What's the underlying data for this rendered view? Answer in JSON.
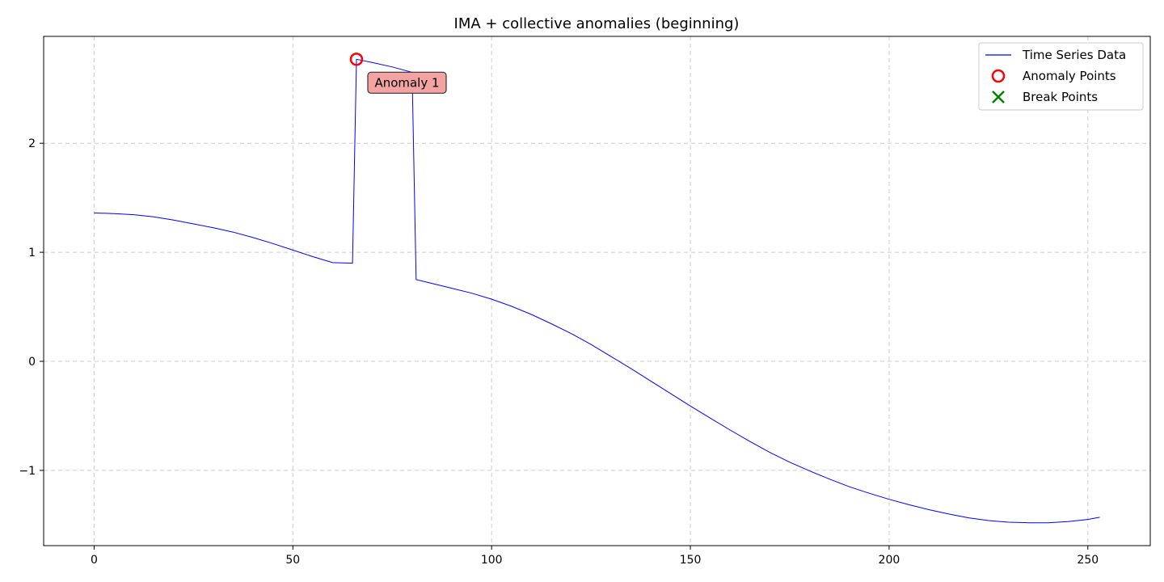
{
  "chart_data": {
    "type": "line",
    "title": "IMA + collective anomalies (beginning)",
    "xlabel": "",
    "ylabel": "",
    "xlim": [
      -12.7,
      265.7
    ],
    "ylim": [
      -1.69,
      2.98
    ],
    "xticks": [
      0,
      50,
      100,
      150,
      200,
      250
    ],
    "yticks": [
      -1,
      0,
      1,
      2
    ],
    "xtick_labels": [
      "0",
      "50",
      "100",
      "150",
      "200",
      "250"
    ],
    "ytick_labels": [
      "−1",
      "0",
      "1",
      "2"
    ],
    "grid": true,
    "legend_position": "top-right",
    "series": [
      {
        "name": "Time Series Data",
        "style": "line",
        "color": "#0000ff",
        "x": [
          0,
          5,
          10,
          15,
          20,
          25,
          30,
          35,
          40,
          45,
          50,
          55,
          60,
          65,
          66,
          70,
          75,
          80,
          81,
          85,
          90,
          95,
          100,
          105,
          110,
          115,
          120,
          125,
          130,
          135,
          140,
          145,
          150,
          155,
          160,
          165,
          170,
          175,
          180,
          185,
          190,
          195,
          200,
          205,
          210,
          215,
          220,
          225,
          230,
          235,
          240,
          245,
          250,
          253
        ],
        "y": [
          1.36,
          1.355,
          1.345,
          1.325,
          1.295,
          1.26,
          1.225,
          1.185,
          1.135,
          1.08,
          1.02,
          0.96,
          0.905,
          0.9,
          2.77,
          2.74,
          2.7,
          2.65,
          0.75,
          0.715,
          0.67,
          0.625,
          0.57,
          0.505,
          0.43,
          0.345,
          0.255,
          0.155,
          0.045,
          -0.065,
          -0.18,
          -0.295,
          -0.41,
          -0.52,
          -0.63,
          -0.735,
          -0.835,
          -0.925,
          -1.005,
          -1.08,
          -1.15,
          -1.21,
          -1.265,
          -1.315,
          -1.36,
          -1.4,
          -1.435,
          -1.46,
          -1.475,
          -1.48,
          -1.48,
          -1.47,
          -1.45,
          -1.43
        ]
      },
      {
        "name": "Anomaly Points",
        "style": "open-circle",
        "color": "#ff0000",
        "x": [
          66
        ],
        "y": [
          2.77
        ]
      },
      {
        "name": "Break Points",
        "style": "x-marker",
        "color": "#008000",
        "x": [],
        "y": []
      }
    ],
    "annotations": [
      {
        "text": "Anomaly 1",
        "x": 66,
        "y": 2.77,
        "box_color": "#f4a3a3"
      }
    ],
    "colors": {
      "grid": "#cccccc",
      "axis": "#000000"
    }
  }
}
